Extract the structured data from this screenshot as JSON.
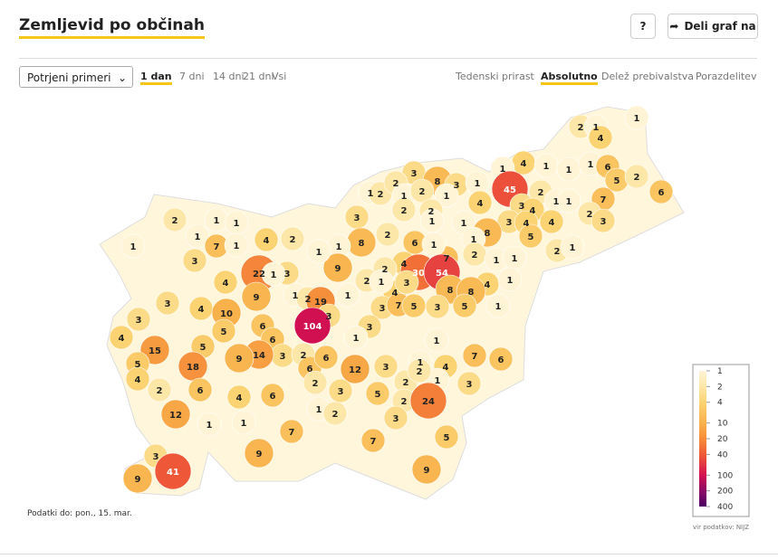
{
  "header": {
    "title": "Zemljevid po občinah",
    "help": "?",
    "share": "Deli graf na"
  },
  "controls": {
    "select": "Potrjeni primeri",
    "periods": [
      "1 dan",
      "7 dni",
      "14 dni",
      "21 dni",
      "Vsi"
    ],
    "active_period": 0,
    "modes": [
      "Tedenski prirast",
      "Absolutno",
      "Delež prebivalstva",
      "Porazdelitev"
    ],
    "active_mode": 1
  },
  "map": {
    "values": [
      1,
      2,
      1,
      4,
      4,
      1,
      1,
      1,
      6,
      1,
      3,
      8,
      3,
      1,
      45,
      5,
      2,
      6,
      1,
      2,
      2,
      1,
      2,
      1,
      2,
      3,
      4,
      1,
      1,
      7,
      4,
      2,
      2,
      2,
      1,
      3,
      3,
      4,
      4,
      2,
      3,
      1,
      1,
      1,
      8,
      1,
      7,
      1,
      4,
      2,
      8,
      2,
      6,
      1,
      1,
      7,
      2,
      5,
      2,
      1,
      3,
      1,
      1,
      22,
      3,
      1,
      9,
      1,
      4,
      30,
      54,
      1,
      1,
      2,
      4,
      2,
      1,
      3,
      4,
      9,
      1,
      2,
      19,
      1,
      8,
      3,
      4,
      4,
      8,
      1,
      10,
      3,
      7,
      5,
      3,
      5,
      1,
      3,
      3,
      3,
      5,
      6,
      104,
      4,
      5,
      6,
      3,
      1,
      1,
      15,
      14,
      9,
      2,
      6,
      6,
      18,
      5,
      4,
      2,
      6,
      12,
      3,
      1,
      4,
      7,
      6,
      4,
      6,
      2,
      3,
      5,
      2,
      1,
      3,
      2,
      2,
      24,
      1,
      2,
      3,
      12,
      1,
      1,
      7,
      5,
      7,
      9,
      9,
      3,
      41,
      9
    ],
    "legend": {
      "ticks": [
        1,
        2,
        4,
        10,
        20,
        40,
        100,
        200,
        400
      ],
      "colors": [
        "#fff4d6",
        "#fde7a8",
        "#fbd372",
        "#f9b14c",
        "#f68c3a",
        "#ef5a37",
        "#d4104f",
        "#8c0b68",
        "#4a0062"
      ]
    },
    "footer": "Podatki do: pon., 15. mar.",
    "source": "vir podatkov: NIJZ"
  }
}
